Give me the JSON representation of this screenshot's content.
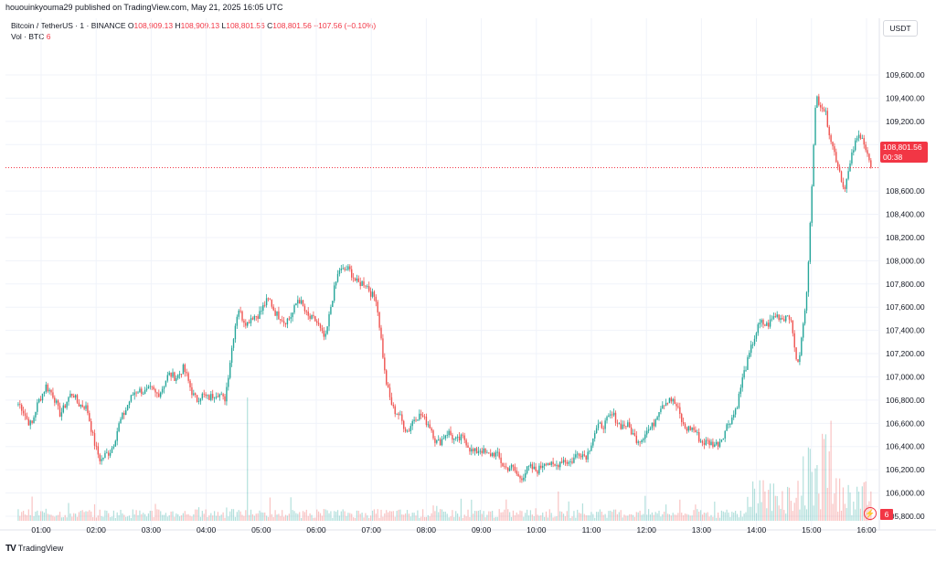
{
  "header": {
    "publish_line": "hououinkyouma29 published on TradingView.com, May 21, 2025 16:05 UTC"
  },
  "legend": {
    "symbol": "Bitcoin / TetherUS · 1 · BINANCE",
    "open_label": "O",
    "open": "108,909.13",
    "high_label": "H",
    "high": "108,909.13",
    "low_label": "L",
    "low": "108,801.56",
    "close_label": "C",
    "close": "108,801.56",
    "change": "−107.56 (−0.10%)",
    "vol_label": "Vol · BTC",
    "vol_value": "6"
  },
  "currency_label": "USDT",
  "price_badge": {
    "price": "108,801.56",
    "countdown": "00:38"
  },
  "volume_badge": "6",
  "branding": "TradingView",
  "colors": {
    "up": "#26a69a",
    "down": "#ef5350",
    "badge": "#f23645",
    "grid": "#f0f3fa"
  },
  "icons": {
    "flash": "lightning-icon",
    "logo": "tradingview-logo-icon"
  },
  "chart_data": {
    "type": "line",
    "title": "",
    "xlabel": "",
    "ylabel": "",
    "x_ticks": [
      "01:00",
      "02:00",
      "03:00",
      "04:00",
      "05:00",
      "06:00",
      "07:00",
      "08:00",
      "09:00",
      "10:00",
      "11:00",
      "12:00",
      "13:00",
      "14:00",
      "15:00",
      "16:00"
    ],
    "y_ticks": [
      "105,800.00",
      "106,000.00",
      "106,200.00",
      "106,400.00",
      "106,600.00",
      "106,800.00",
      "107,000.00",
      "107,200.00",
      "107,400.00",
      "107,600.00",
      "107,800.00",
      "108,000.00",
      "108,200.00",
      "108,400.00",
      "108,600.00",
      "109,000.00",
      "109,200.00",
      "109,400.00",
      "109,600.00"
    ],
    "ylim": [
      105800,
      109800
    ],
    "current_price": 108801.56,
    "grid": true,
    "series": [
      {
        "x": [
          "00:35",
          "00:50",
          "01:05",
          "01:20",
          "01:35",
          "01:50",
          "02:05",
          "02:20",
          "02:35",
          "02:50",
          "03:05",
          "03:20",
          "03:35",
          "03:50",
          "04:05",
          "04:20",
          "04:35",
          "04:45",
          "04:55",
          "05:10",
          "05:25",
          "05:40",
          "05:55",
          "06:10",
          "06:25",
          "06:35",
          "06:50",
          "07:05",
          "07:15",
          "07:25",
          "07:40",
          "07:55",
          "08:10",
          "08:25",
          "08:40",
          "08:55",
          "09:10",
          "09:25",
          "09:40",
          "09:55",
          "10:10",
          "10:25",
          "10:40",
          "10:55",
          "11:10",
          "11:25",
          "11:40",
          "11:55",
          "12:10",
          "12:25",
          "12:40",
          "12:55",
          "13:10",
          "13:25",
          "13:40",
          "13:55",
          "14:05",
          "14:20",
          "14:35",
          "14:45",
          "14:55",
          "15:00",
          "15:05",
          "15:15",
          "15:25",
          "15:35",
          "15:45",
          "15:55",
          "16:05"
        ],
        "values": [
          106750,
          106600,
          106950,
          106700,
          106850,
          106700,
          106250,
          106450,
          106800,
          106900,
          106850,
          107000,
          107050,
          106800,
          106850,
          106820,
          107600,
          107450,
          107550,
          107650,
          107450,
          107650,
          107500,
          107350,
          107950,
          107900,
          107800,
          107700,
          107000,
          106700,
          106550,
          106700,
          106450,
          106500,
          106450,
          106350,
          106350,
          106250,
          106150,
          106200,
          106250,
          106250,
          106300,
          106350,
          106600,
          106650,
          106550,
          106450,
          106650,
          106850,
          106600,
          106500,
          106400,
          106500,
          106800,
          107300,
          107450,
          107500,
          107550,
          107100,
          107700,
          108600,
          109450,
          109250,
          108950,
          108600,
          108950,
          109100,
          108801.56
        ]
      }
    ],
    "volume": {
      "unit": "BTC",
      "last": 6
    }
  }
}
